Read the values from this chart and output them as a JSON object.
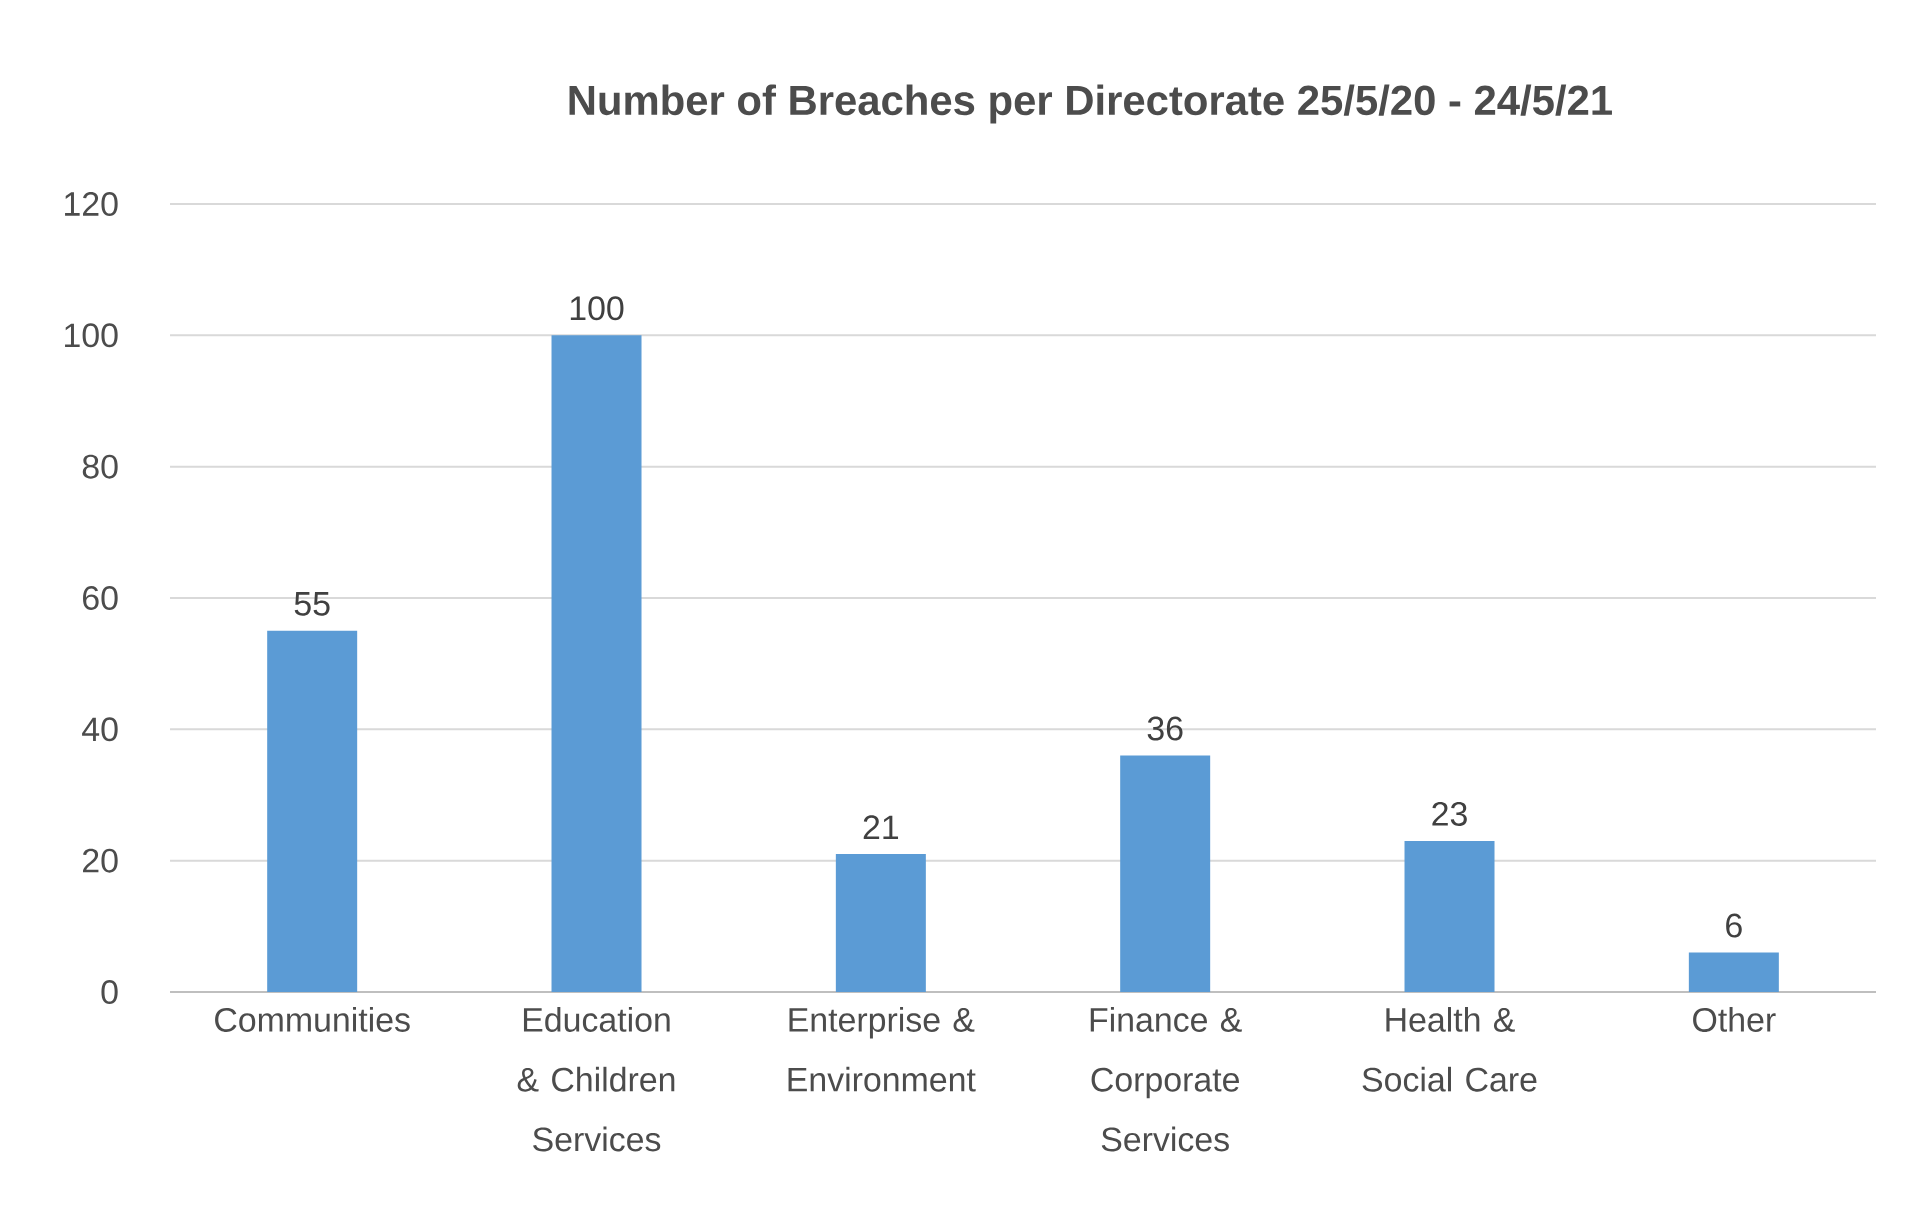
{
  "chart_data": {
    "type": "bar",
    "title": "Number of Breaches per Directorate 25/5/20 - 24/5/21",
    "categories": [
      "Communities",
      "Education & Children Services",
      "Enterprise & Environment",
      "Finance & Corporate Services",
      "Health & Social Care",
      "Other"
    ],
    "values": [
      55,
      100,
      21,
      36,
      23,
      6
    ],
    "color": "#5b9bd5",
    "ylim": [
      0,
      120
    ],
    "yticks": [
      0,
      20,
      40,
      60,
      80,
      100,
      120
    ],
    "grid": "y",
    "data_labels": true
  }
}
